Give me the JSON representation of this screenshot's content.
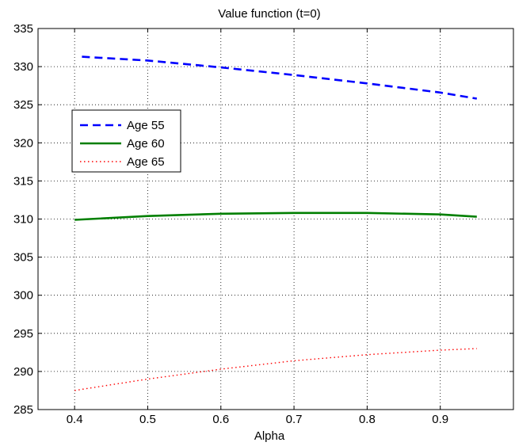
{
  "chart_data": {
    "type": "line",
    "title": "Value function (t=0)",
    "xlabel": "Alpha",
    "ylabel": "",
    "xlim": [
      0.35,
      1.0
    ],
    "ylim": [
      285,
      335
    ],
    "xticks": [
      0.4,
      0.5,
      0.6,
      0.7,
      0.8,
      0.9
    ],
    "xtick_labels": [
      "0.4",
      "0.5",
      "0.6",
      "0.7",
      "0.8",
      "0.9"
    ],
    "yticks": [
      285,
      290,
      295,
      300,
      305,
      310,
      315,
      320,
      325,
      330,
      335
    ],
    "ytick_labels": [
      "285",
      "290",
      "295",
      "300",
      "305",
      "310",
      "315",
      "320",
      "325",
      "330",
      "335"
    ],
    "grid": true,
    "legend_position": "upper-left",
    "series": [
      {
        "name": "Age 55",
        "color": "#0000ff",
        "style": "dashed",
        "x": [
          0.41,
          0.5,
          0.6,
          0.7,
          0.8,
          0.9,
          0.95
        ],
        "y": [
          331.3,
          330.8,
          329.9,
          328.9,
          327.8,
          326.6,
          325.8
        ]
      },
      {
        "name": "Age 60",
        "color": "#007f00",
        "style": "solid",
        "x": [
          0.4,
          0.5,
          0.6,
          0.7,
          0.8,
          0.9,
          0.95
        ],
        "y": [
          309.9,
          310.4,
          310.7,
          310.8,
          310.8,
          310.6,
          310.3
        ]
      },
      {
        "name": "Age 65",
        "color": "#ff0000",
        "style": "dotted",
        "x": [
          0.4,
          0.5,
          0.6,
          0.7,
          0.8,
          0.9,
          0.95
        ],
        "y": [
          287.5,
          289.0,
          290.3,
          291.4,
          292.2,
          292.8,
          293.0
        ]
      }
    ]
  }
}
